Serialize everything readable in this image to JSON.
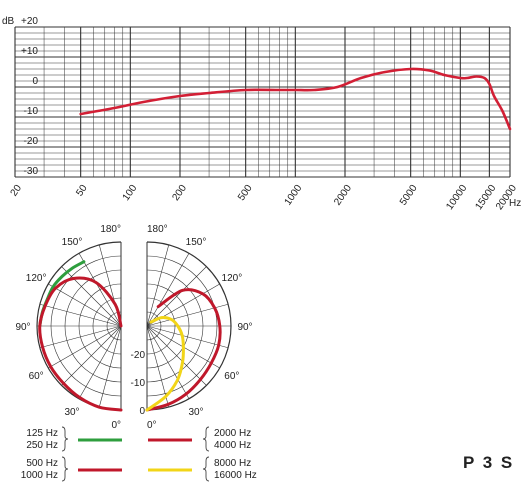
{
  "model": "P 3 S",
  "colors": {
    "green": "#2e9e3e",
    "red": "#c0182b",
    "yellow": "#f2d518",
    "grid": "#333333",
    "frequency_curve": "#d21f35"
  },
  "chart_data": [
    {
      "type": "line",
      "title": "",
      "xscale": "log",
      "xlim": [
        20,
        20000
      ],
      "ylim": [
        -30,
        20
      ],
      "y_unit": "dB",
      "x_unit": "Hz",
      "ytick_labels": [
        "+20",
        "+10",
        "0",
        "-10",
        "-20",
        "-30"
      ],
      "yticks": [
        20,
        10,
        0,
        -10,
        -20,
        -30
      ],
      "xtick_labels": [
        "20",
        "50",
        "100",
        "200",
        "500",
        "1000",
        "2000",
        "5000",
        "10000",
        "15000",
        "20000"
      ],
      "xticks": [
        20,
        50,
        100,
        200,
        500,
        1000,
        2000,
        5000,
        10000,
        15000,
        20000
      ],
      "series": [
        {
          "x": [
            50,
            80,
            120,
            200,
            300,
            500,
            800,
            1000,
            1300,
            1800,
            2500,
            3500,
            5000,
            6500,
            8000,
            10000,
            11000,
            12500,
            14000,
            15000,
            16000,
            18000,
            20000
          ],
          "y": [
            -9,
            -7,
            -5,
            -3,
            -2,
            -1,
            -1,
            -1,
            -1,
            0,
            3,
            5,
            6,
            5.5,
            4,
            3,
            3,
            3.5,
            3,
            1,
            -3,
            -8,
            -14
          ]
        }
      ]
    },
    {
      "type": "polar",
      "title": "",
      "angle_labels_left": [
        "180°",
        "150°",
        "120°",
        "90°",
        "60°",
        "30°",
        "0°"
      ],
      "angle_labels_right": [
        "180°",
        "150°",
        "120°",
        "90°",
        "60°",
        "30°",
        "0°"
      ],
      "radial_labels": [
        "-20",
        "-10",
        "0"
      ],
      "radial_range_db": [
        -30,
        0
      ],
      "legend": {
        "left": {
          "pairs": [
            {
              "labels": [
                "125 Hz",
                "250 Hz"
              ],
              "color": "green"
            },
            {
              "labels": [
                "500 Hz",
                "1000 Hz"
              ],
              "color": "red"
            }
          ]
        },
        "right": {
          "pairs": [
            {
              "labels": [
                "2000 Hz",
                "4000 Hz"
              ],
              "color": "red"
            },
            {
              "labels": [
                "8000 Hz",
                "16000 Hz"
              ],
              "color": "yellow"
            }
          ]
        }
      },
      "series": [
        {
          "side": "left",
          "color": "green",
          "angles": [
            90,
            100,
            110,
            120,
            130,
            140,
            150
          ],
          "db": [
            -1,
            -1.5,
            -2,
            -2,
            -2.5,
            -3,
            -3.5
          ]
        },
        {
          "side": "left",
          "color": "red",
          "angles": [
            0,
            15,
            30,
            45,
            60,
            75,
            90,
            105,
            120,
            135,
            150,
            165,
            180
          ],
          "db": [
            0,
            0,
            -0.5,
            -1,
            -1,
            -1,
            -1,
            -2,
            -3,
            -6,
            -12,
            -22,
            -30
          ]
        },
        {
          "side": "right",
          "color": "red",
          "angles": [
            0,
            15,
            30,
            45,
            60,
            75,
            90,
            105,
            120,
            135,
            150
          ],
          "db": [
            0,
            -1,
            -2,
            -3,
            -3.5,
            -3.5,
            -4,
            -5,
            -7,
            -12,
            -22
          ]
        },
        {
          "side": "right",
          "color": "yellow",
          "angles": [
            0,
            15,
            30,
            45,
            60,
            75,
            90,
            105,
            120,
            135
          ],
          "db": [
            0,
            -4,
            -8,
            -12,
            -15,
            -17,
            -19,
            -21,
            -24,
            -28
          ]
        }
      ]
    }
  ]
}
